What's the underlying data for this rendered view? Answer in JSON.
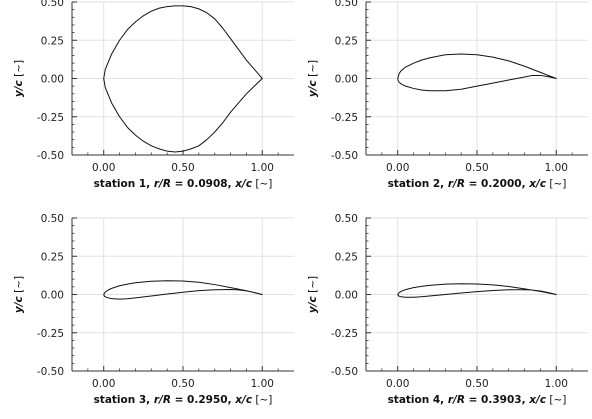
{
  "chart_data": [
    {
      "type": "line",
      "xlim": [
        -0.2,
        1.2
      ],
      "ylim": [
        -0.5,
        0.5
      ],
      "xticks": [
        "0.00",
        "0.50",
        "1.00"
      ],
      "yticks": [
        "0.50",
        "0.25",
        "0.00",
        "-0.25",
        "-0.50"
      ],
      "grid": true,
      "xlabel_parts": [
        "station 1, ",
        "r/R",
        " = 0.0908, ",
        "x/c",
        " [~]"
      ],
      "ylabel_parts": [
        "y/c",
        " [~]"
      ],
      "series": [
        {
          "x": [
            1.0,
            0.95,
            0.9,
            0.85,
            0.8,
            0.75,
            0.7,
            0.65,
            0.6,
            0.55,
            0.5,
            0.45,
            0.4,
            0.35,
            0.3,
            0.25,
            0.2,
            0.15,
            0.1,
            0.05,
            0.03,
            0.01,
            0.0,
            0.01,
            0.03,
            0.05,
            0.1,
            0.15,
            0.2,
            0.25,
            0.3,
            0.35,
            0.4,
            0.45,
            0.5,
            0.55,
            0.6,
            0.65,
            0.7,
            0.75,
            0.8,
            0.85,
            0.9,
            0.95,
            1.0
          ],
          "y": [
            0.0,
            0.06,
            0.12,
            0.19,
            0.26,
            0.33,
            0.39,
            0.43,
            0.455,
            0.47,
            0.475,
            0.475,
            0.47,
            0.46,
            0.44,
            0.41,
            0.37,
            0.32,
            0.25,
            0.16,
            0.11,
            0.06,
            0.0,
            -0.06,
            -0.11,
            -0.16,
            -0.25,
            -0.32,
            -0.37,
            -0.41,
            -0.44,
            -0.46,
            -0.475,
            -0.48,
            -0.475,
            -0.46,
            -0.44,
            -0.4,
            -0.35,
            -0.29,
            -0.22,
            -0.16,
            -0.1,
            -0.05,
            0.0
          ]
        }
      ]
    },
    {
      "type": "line",
      "xlim": [
        -0.2,
        1.2
      ],
      "ylim": [
        -0.5,
        0.5
      ],
      "xticks": [
        "0.00",
        "0.50",
        "1.00"
      ],
      "yticks": [
        "0.50",
        "0.25",
        "0.00",
        "-0.25",
        "-0.50"
      ],
      "grid": true,
      "xlabel_parts": [
        "station 2, ",
        "r/R",
        " = 0.2000, ",
        "x/c",
        " [~]"
      ],
      "ylabel_parts": [
        "y/c",
        " [~]"
      ],
      "series": [
        {
          "x": [
            1.0,
            0.95,
            0.9,
            0.8,
            0.7,
            0.6,
            0.5,
            0.4,
            0.3,
            0.2,
            0.15,
            0.1,
            0.05,
            0.025,
            0.01,
            0.0,
            0.005,
            0.02,
            0.05,
            0.1,
            0.15,
            0.2,
            0.3,
            0.4,
            0.5,
            0.6,
            0.7,
            0.8,
            0.85,
            0.9,
            0.95,
            1.0
          ],
          "y": [
            0.0,
            0.02,
            0.04,
            0.08,
            0.115,
            0.14,
            0.155,
            0.16,
            0.155,
            0.135,
            0.12,
            0.1,
            0.075,
            0.055,
            0.035,
            0.0,
            -0.02,
            -0.035,
            -0.05,
            -0.065,
            -0.075,
            -0.08,
            -0.08,
            -0.07,
            -0.05,
            -0.03,
            -0.01,
            0.01,
            0.02,
            0.02,
            0.012,
            0.0
          ]
        }
      ]
    },
    {
      "type": "line",
      "xlim": [
        -0.2,
        1.2
      ],
      "ylim": [
        -0.5,
        0.5
      ],
      "xticks": [
        "0.00",
        "0.50",
        "1.00"
      ],
      "yticks": [
        "0.50",
        "0.25",
        "0.00",
        "-0.25",
        "-0.50"
      ],
      "grid": true,
      "xlabel_parts": [
        "station 3, ",
        "r/R",
        " = 0.2950, ",
        "x/c",
        " [~]"
      ],
      "ylabel_parts": [
        "y/c",
        " [~]"
      ],
      "series": [
        {
          "x": [
            1.0,
            0.95,
            0.9,
            0.8,
            0.7,
            0.6,
            0.5,
            0.4,
            0.3,
            0.2,
            0.15,
            0.1,
            0.05,
            0.02,
            0.005,
            0.0,
            0.005,
            0.02,
            0.05,
            0.1,
            0.15,
            0.2,
            0.3,
            0.4,
            0.5,
            0.6,
            0.7,
            0.8,
            0.85,
            0.9,
            0.95,
            1.0
          ],
          "y": [
            0.0,
            0.012,
            0.025,
            0.045,
            0.065,
            0.08,
            0.088,
            0.09,
            0.087,
            0.077,
            0.068,
            0.057,
            0.04,
            0.025,
            0.01,
            0.0,
            -0.012,
            -0.02,
            -0.027,
            -0.03,
            -0.028,
            -0.022,
            -0.01,
            0.003,
            0.015,
            0.025,
            0.031,
            0.033,
            0.03,
            0.024,
            0.013,
            0.0
          ]
        }
      ]
    },
    {
      "type": "line",
      "xlim": [
        -0.2,
        1.2
      ],
      "ylim": [
        -0.5,
        0.5
      ],
      "xticks": [
        "0.00",
        "0.50",
        "1.00"
      ],
      "yticks": [
        "0.50",
        "0.25",
        "0.00",
        "-0.25",
        "-0.50"
      ],
      "grid": true,
      "xlabel_parts": [
        "station 4, ",
        "r/R",
        " = 0.3903, ",
        "x/c",
        " [~]"
      ],
      "ylabel_parts": [
        "y/c",
        " [~]"
      ],
      "series": [
        {
          "x": [
            1.0,
            0.95,
            0.9,
            0.8,
            0.7,
            0.6,
            0.5,
            0.4,
            0.3,
            0.2,
            0.15,
            0.1,
            0.05,
            0.02,
            0.005,
            0.0,
            0.005,
            0.02,
            0.05,
            0.1,
            0.15,
            0.2,
            0.3,
            0.4,
            0.5,
            0.6,
            0.7,
            0.8,
            0.85,
            0.9,
            0.95,
            1.0
          ],
          "y": [
            0.0,
            0.01,
            0.02,
            0.037,
            0.052,
            0.063,
            0.069,
            0.07,
            0.068,
            0.06,
            0.053,
            0.045,
            0.032,
            0.02,
            0.008,
            0.0,
            -0.009,
            -0.015,
            -0.018,
            -0.018,
            -0.015,
            -0.01,
            0.0,
            0.01,
            0.019,
            0.026,
            0.031,
            0.032,
            0.029,
            0.023,
            0.012,
            0.0
          ]
        }
      ]
    }
  ]
}
